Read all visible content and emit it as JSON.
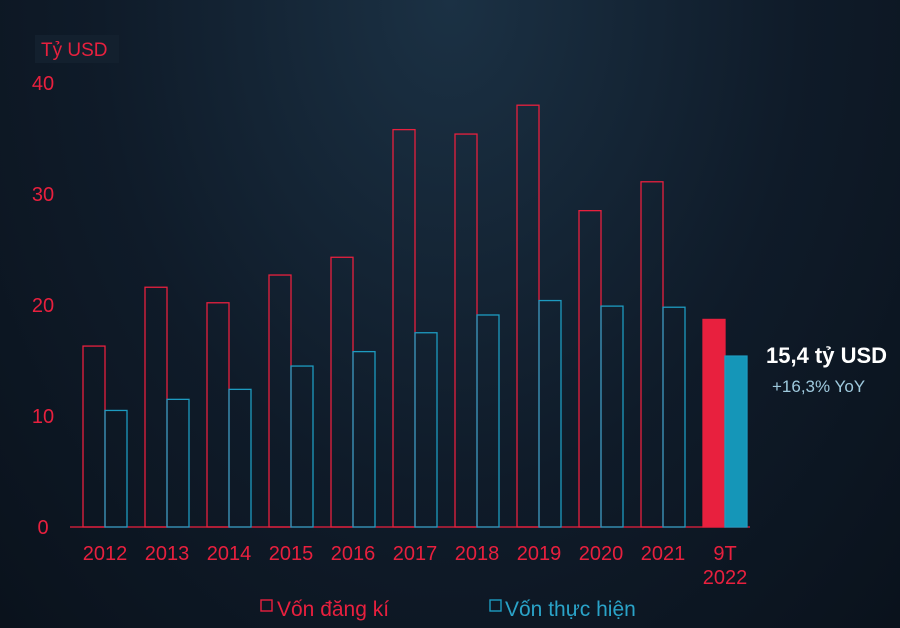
{
  "colors": {
    "registered": "#e8203e",
    "implemented": "#1d9bc0",
    "implemented_fill": "#1596b8",
    "axis": "#e8203e"
  },
  "chart_data": {
    "type": "bar",
    "ylabel": "Tỷ USD",
    "ylim": [
      0,
      40
    ],
    "yticks": [
      "0",
      "10",
      "20",
      "30",
      "40"
    ],
    "categories": [
      {
        "label": "2012"
      },
      {
        "label": "2013"
      },
      {
        "label": "2014"
      },
      {
        "label": "2015"
      },
      {
        "label": "2016"
      },
      {
        "label": "2017"
      },
      {
        "label": "2018"
      },
      {
        "label": "2019"
      },
      {
        "label": "2020"
      },
      {
        "label": "2021"
      },
      {
        "label": "9T",
        "label2": "2022"
      }
    ],
    "series": [
      {
        "name": "Vốn đăng kí",
        "values": [
          16.3,
          21.6,
          20.2,
          22.7,
          24.3,
          35.8,
          35.4,
          38.0,
          28.5,
          31.1,
          18.7
        ]
      },
      {
        "name": "Vốn thực hiện",
        "values": [
          10.5,
          11.5,
          12.4,
          14.5,
          15.8,
          17.5,
          19.1,
          20.4,
          19.9,
          19.8,
          15.4
        ]
      }
    ],
    "highlight_last": true,
    "legend": "bottom",
    "grid": false
  },
  "callout": {
    "main": "15,4 tỷ USD",
    "sub": "+16,3% YoY"
  }
}
